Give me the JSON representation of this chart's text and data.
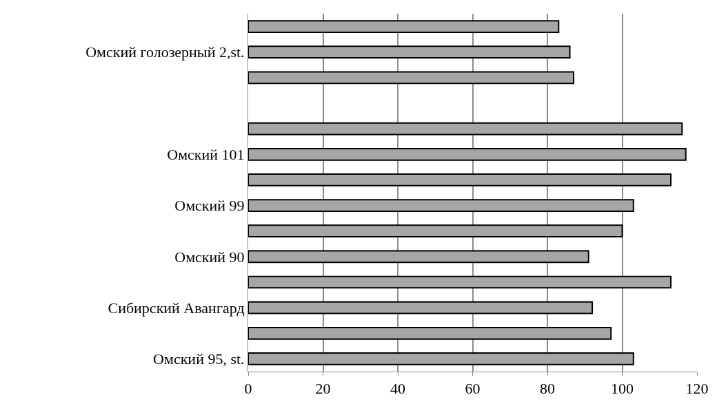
{
  "chart_data": {
    "type": "bar",
    "orientation": "horizontal",
    "categories": [
      null,
      "Омский голозерный 2,st.",
      null,
      null,
      null,
      "Омский 101",
      null,
      "Омский 99",
      null,
      "Омский 90",
      null,
      "Сибирский Авангард",
      null,
      "Омский 95, st."
    ],
    "values": [
      83,
      86,
      87,
      null,
      116,
      117,
      113,
      103,
      100,
      91,
      113,
      92,
      97,
      103
    ],
    "color": "#a6a6a6",
    "xlim": [
      0,
      120
    ],
    "xticks": [
      0,
      20,
      40,
      60,
      80,
      100,
      120
    ],
    "grid": "x"
  }
}
